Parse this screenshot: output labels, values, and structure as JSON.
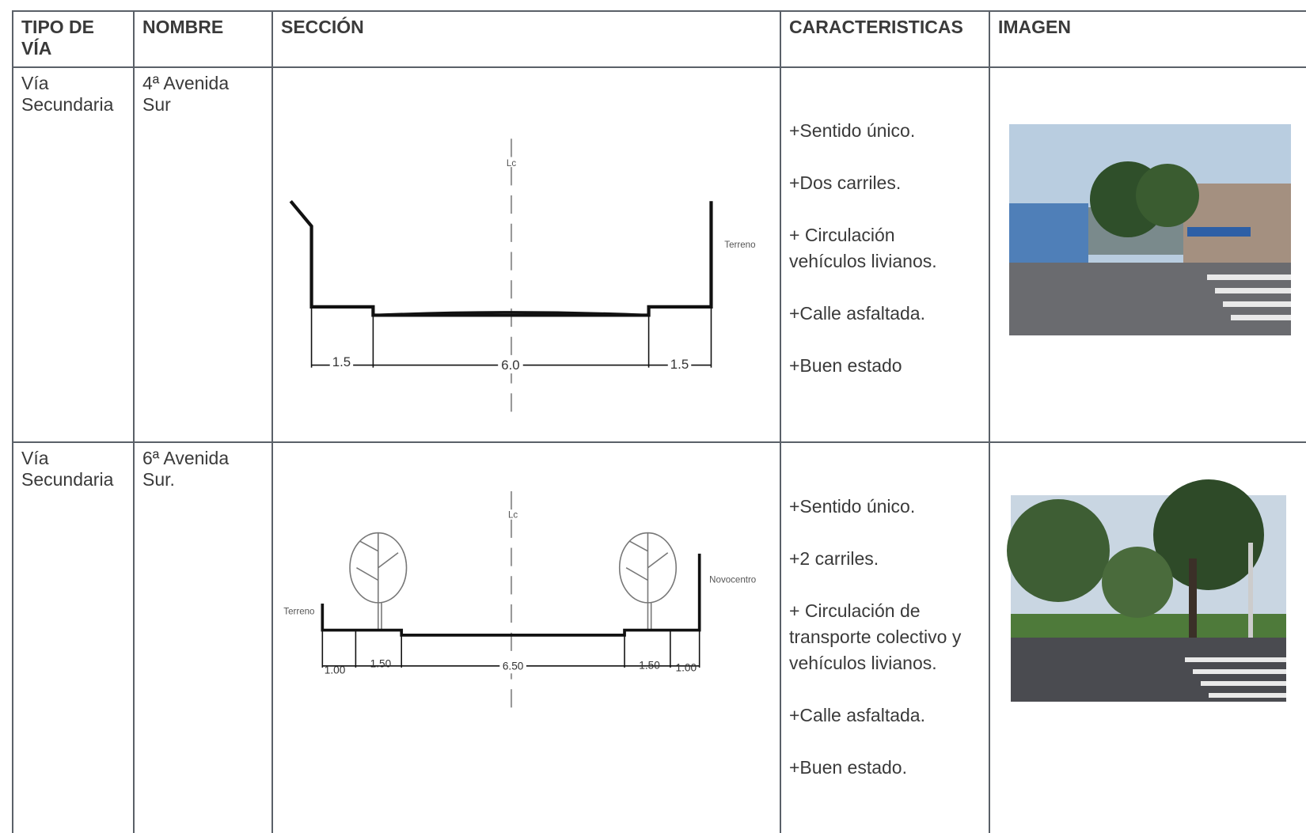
{
  "table": {
    "headers": [
      "TIPO DE VÍA",
      "NOMBRE",
      "SECCIÓN",
      "CARACTERISTICAS",
      "IMAGEN"
    ],
    "rows": [
      {
        "tipo": "Vía Secundaria",
        "nombre": "4ª Avenida Sur",
        "seccion": {
          "axis_label": "Lc",
          "labels": [
            "Terreno"
          ],
          "dimensions": [
            "1.5",
            "6.0",
            "1.5"
          ]
        },
        "caracteristicas": [
          "+Sentido único.",
          "+Dos carriles.",
          "+ Circulación vehículos livianos.",
          "+Calle asfaltada.",
          "+Buen estado"
        ]
      },
      {
        "tipo": "Vía Secundaria",
        "nombre": "6ª Avenida Sur.",
        "seccion": {
          "axis_label": "Lc",
          "labels": [
            "Terreno",
            "Novocentro"
          ],
          "dimensions": [
            "1.00",
            "1.50",
            "6.50",
            "1.50",
            "1.00"
          ]
        },
        "caracteristicas": [
          "+Sentido único.",
          "+2 carriles.",
          "+ Circulación de transporte colectivo y vehículos livianos.",
          "+Calle asfaltada.",
          "+Buen estado."
        ]
      }
    ]
  }
}
